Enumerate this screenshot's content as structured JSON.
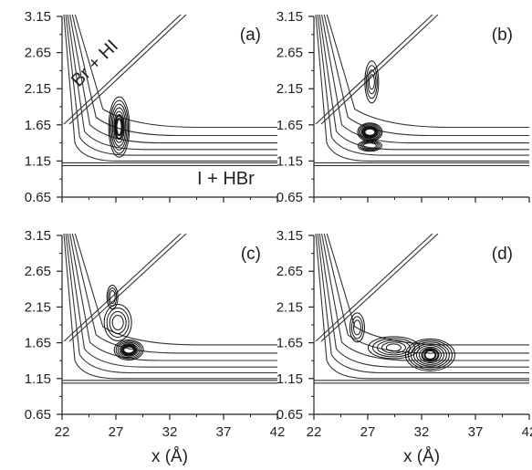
{
  "chart_data": {
    "type": "contour",
    "description_scope": "2x2 grid of potential energy surface contour plots with wavepacket snapshots",
    "xticks": [
      "22",
      "27",
      "32",
      "37",
      "42"
    ],
    "yticks": [
      "0.65",
      "1.15",
      "1.65",
      "2.15",
      "2.65",
      "3.15"
    ],
    "xlim": [
      22,
      42
    ],
    "ylim": [
      0.65,
      3.15
    ],
    "xlabel": "x (Å)",
    "panels": [
      {
        "label": "(a)",
        "annotations": [
          "Br + HI",
          "I + HBr"
        ],
        "wavepacket": {
          "center": [
            27.3,
            1.62
          ]
        }
      },
      {
        "label": "(b)",
        "annotations": [],
        "wavepacket": {
          "center": [
            27.2,
            1.55
          ]
        }
      },
      {
        "label": "(c)",
        "annotations": [],
        "wavepacket": {
          "center": [
            28.2,
            1.55
          ]
        }
      },
      {
        "label": "(d)",
        "annotations": [],
        "wavepacket": {
          "center": [
            32.8,
            1.48
          ]
        }
      }
    ]
  }
}
